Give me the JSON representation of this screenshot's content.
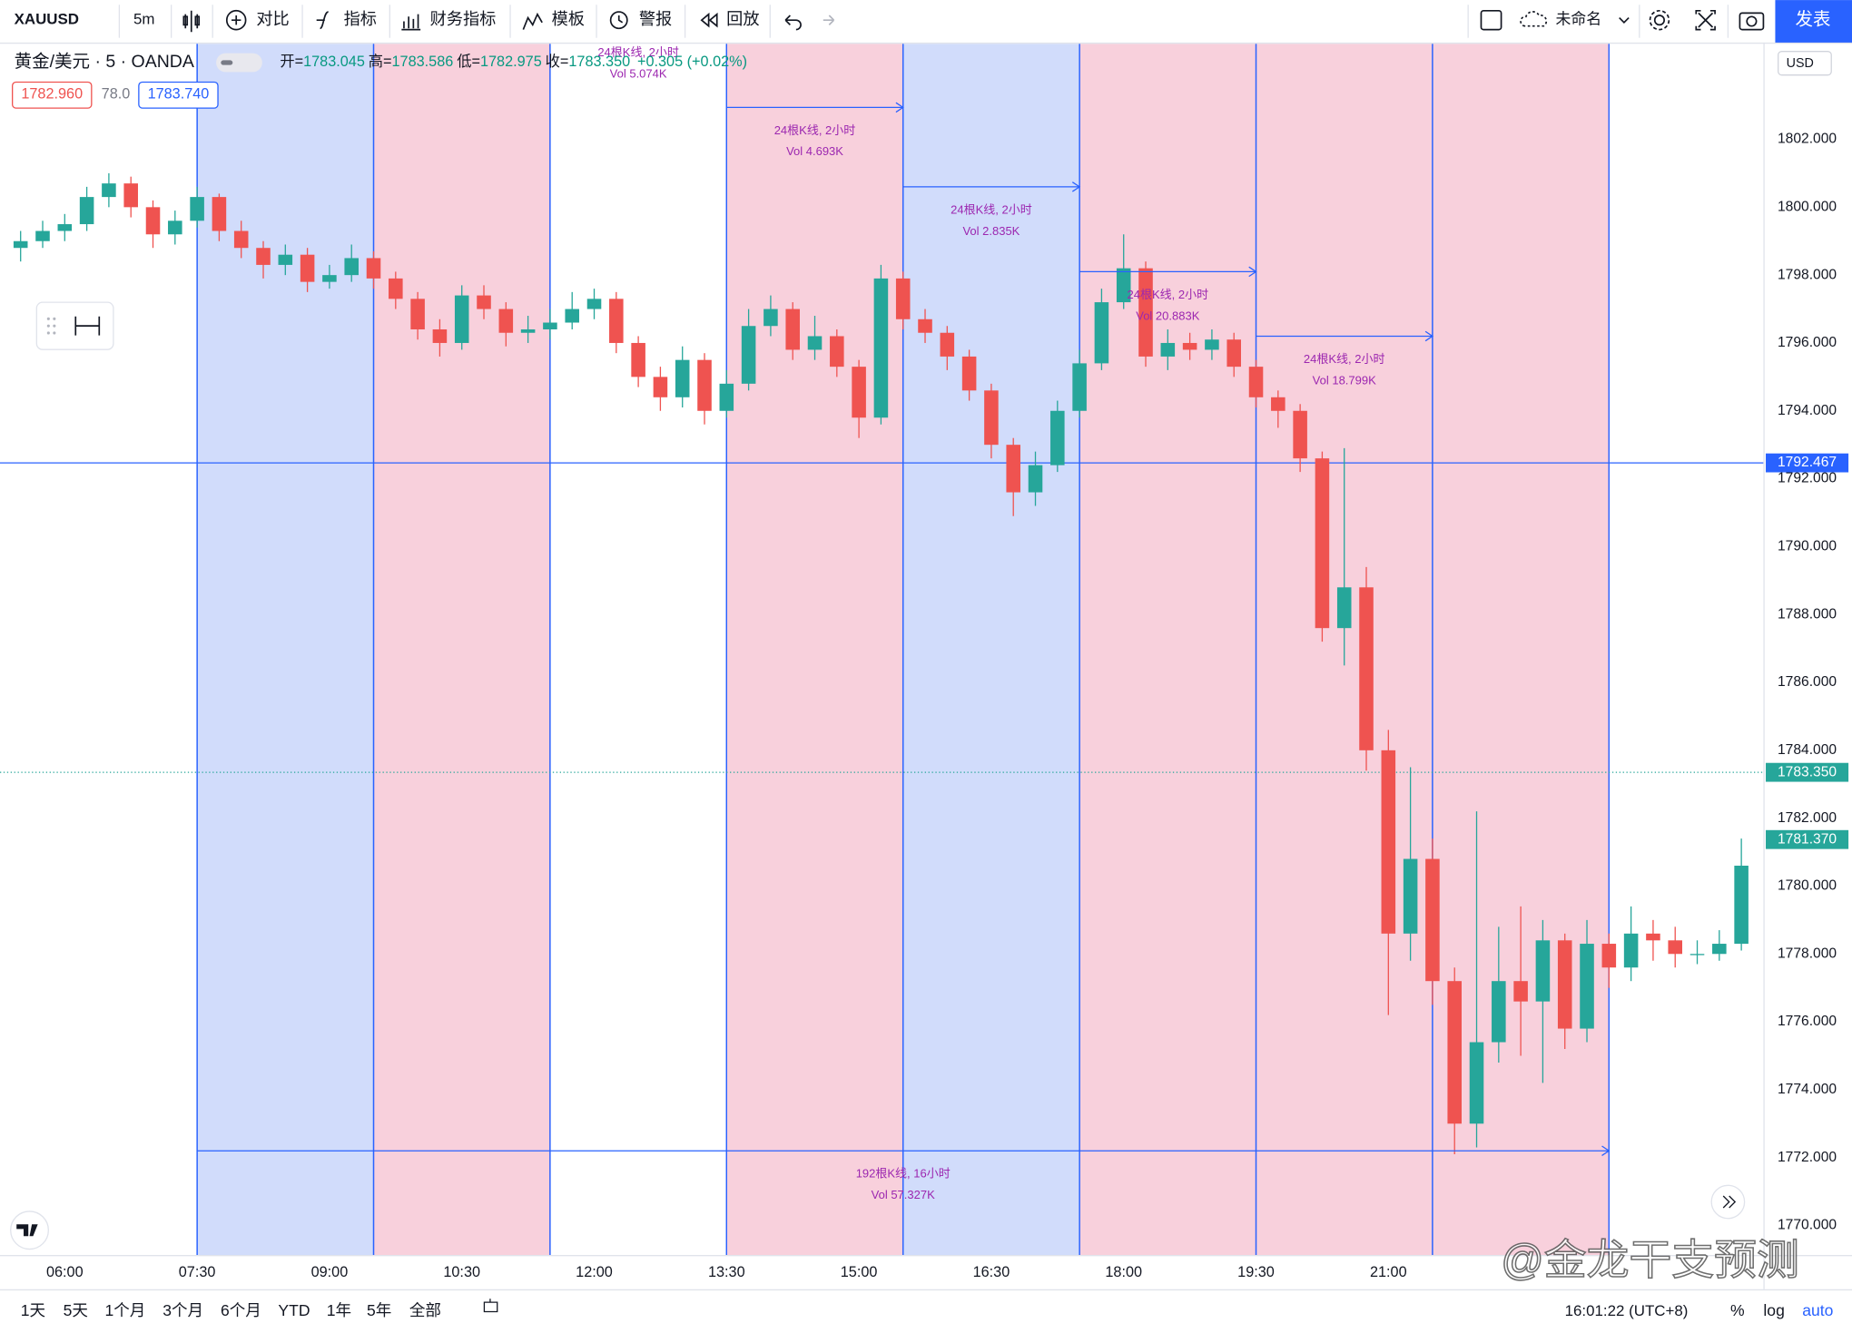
{
  "toolbar": {
    "symbol": "XAUUSD",
    "interval": "5m",
    "items": [
      "对比",
      "指标",
      "财务指标",
      "模板",
      "警报",
      "回放"
    ],
    "layout_name": "未命名",
    "publish": "发表"
  },
  "legend": {
    "title": "黄金/美元 · 5 · OANDA",
    "ohlc": [
      {
        "label": "开=",
        "value": "1783.045"
      },
      {
        "label": "高=",
        "value": "1783.586"
      },
      {
        "label": "低=",
        "value": "1782.975"
      },
      {
        "label": "收=",
        "value": "1783.350"
      }
    ],
    "change": "+0.305 (+0.02%)",
    "bid": "1782.960",
    "spread": "78.0",
    "ask": "1783.740"
  },
  "currency": "USD",
  "chart_data": {
    "type": "candlestick",
    "x": [
      330,
      345,
      360,
      375,
      390,
      405,
      420,
      435,
      450,
      465,
      480,
      495,
      510,
      525,
      540,
      555,
      570,
      585,
      600,
      615,
      630,
      645,
      660,
      675,
      690,
      705,
      720,
      735,
      750,
      765,
      780,
      795,
      810,
      825,
      840,
      855,
      870,
      885,
      900,
      915,
      930,
      945,
      960,
      975,
      990,
      1005,
      1020,
      1035,
      1050,
      1065,
      1080,
      1095,
      1110,
      1125,
      1140,
      1155,
      1170,
      1185,
      1200,
      1215,
      1230,
      1245,
      1260,
      1275,
      1290,
      1305,
      1320,
      1335,
      1350,
      1365,
      1380,
      1395,
      1410,
      1425,
      1440,
      1455,
      1470,
      1485,
      1500
    ],
    "open": [
      1798.8,
      1799.0,
      1799.3,
      1799.5,
      1800.3,
      1800.7,
      1800.0,
      1799.2,
      1799.6,
      1800.3,
      1799.3,
      1798.8,
      1798.3,
      1798.6,
      1797.8,
      1798.0,
      1798.5,
      1797.9,
      1797.3,
      1796.4,
      1796.0,
      1797.4,
      1797.0,
      1796.3,
      1796.4,
      1796.6,
      1797.0,
      1797.3,
      1796.0,
      1795.0,
      1794.4,
      1795.5,
      1794.0,
      1794.8,
      1796.5,
      1797.0,
      1795.8,
      1796.2,
      1795.3,
      1793.8,
      1797.9,
      1796.7,
      1796.3,
      1795.6,
      1794.6,
      1793.0,
      1791.6,
      1792.4,
      1794.0,
      1795.4,
      1797.2,
      1798.2,
      1795.6,
      1796.0,
      1795.8,
      1796.1,
      1795.3,
      1794.4,
      1794.0,
      1792.6,
      1787.6,
      1788.8,
      1784.0,
      1778.6,
      1780.8,
      1777.2,
      1773.0,
      1775.4,
      1777.2,
      1776.6,
      1778.4,
      1775.8,
      1778.3,
      1777.6,
      1778.6,
      1778.4,
      1778.0,
      1778.0,
      1778.3
    ],
    "high": [
      1799.3,
      1799.6,
      1799.8,
      1800.6,
      1801.0,
      1800.9,
      1800.2,
      1799.9,
      1800.6,
      1800.4,
      1799.6,
      1799.0,
      1798.9,
      1798.8,
      1798.3,
      1798.9,
      1798.7,
      1798.1,
      1797.5,
      1796.7,
      1797.7,
      1797.7,
      1797.2,
      1796.8,
      1797.0,
      1797.5,
      1797.6,
      1797.5,
      1796.2,
      1795.3,
      1795.9,
      1795.7,
      1795.2,
      1797.0,
      1797.4,
      1797.2,
      1796.8,
      1796.4,
      1795.5,
      1798.3,
      1798.1,
      1797.0,
      1796.5,
      1795.8,
      1794.8,
      1793.2,
      1792.8,
      1794.3,
      1795.8,
      1797.6,
      1799.2,
      1798.4,
      1796.4,
      1796.3,
      1796.4,
      1796.3,
      1795.5,
      1794.6,
      1794.2,
      1792.8,
      1792.9,
      1789.4,
      1784.6,
      1783.5,
      1781.4,
      1777.6,
      1782.2,
      1778.8,
      1779.4,
      1779.0,
      1778.6,
      1779.0,
      1778.6,
      1779.4,
      1779.0,
      1778.8,
      1778.4,
      1778.7,
      1781.4
    ],
    "low": [
      1798.4,
      1798.8,
      1799.0,
      1799.3,
      1800.0,
      1799.7,
      1798.8,
      1798.9,
      1799.4,
      1799.0,
      1798.5,
      1797.9,
      1798.0,
      1797.5,
      1797.6,
      1797.8,
      1797.6,
      1797.0,
      1796.1,
      1795.6,
      1795.8,
      1796.7,
      1795.9,
      1796.0,
      1796.1,
      1796.4,
      1796.7,
      1795.7,
      1794.7,
      1794.0,
      1794.1,
      1793.6,
      1793.8,
      1794.6,
      1796.2,
      1795.5,
      1795.5,
      1795.0,
      1793.2,
      1793.6,
      1796.4,
      1796.0,
      1795.2,
      1794.3,
      1792.6,
      1790.9,
      1791.2,
      1792.2,
      1793.8,
      1795.2,
      1797.0,
      1795.3,
      1795.2,
      1795.5,
      1795.5,
      1795.0,
      1794.1,
      1793.5,
      1792.2,
      1787.2,
      1786.5,
      1783.4,
      1776.2,
      1777.8,
      1776.5,
      1772.1,
      1772.3,
      1774.8,
      1775.0,
      1774.2,
      1775.2,
      1775.4,
      1777.0,
      1777.2,
      1777.8,
      1777.6,
      1777.7,
      1777.8,
      1778.1
    ],
    "close": [
      1799.0,
      1799.3,
      1799.5,
      1800.3,
      1800.7,
      1800.0,
      1799.2,
      1799.6,
      1800.3,
      1799.3,
      1798.8,
      1798.3,
      1798.6,
      1797.8,
      1798.0,
      1798.5,
      1797.9,
      1797.3,
      1796.4,
      1796.0,
      1797.4,
      1797.0,
      1796.3,
      1796.4,
      1796.6,
      1797.0,
      1797.3,
      1796.0,
      1795.0,
      1794.4,
      1795.5,
      1794.0,
      1794.8,
      1796.5,
      1797.0,
      1795.8,
      1796.2,
      1795.3,
      1793.8,
      1797.9,
      1796.7,
      1796.3,
      1795.6,
      1794.6,
      1793.0,
      1791.6,
      1792.4,
      1794.0,
      1795.4,
      1797.2,
      1798.2,
      1795.6,
      1796.0,
      1795.8,
      1796.1,
      1795.3,
      1794.4,
      1794.0,
      1792.6,
      1787.6,
      1788.8,
      1784.0,
      1778.6,
      1780.8,
      1777.2,
      1773.0,
      1775.4,
      1777.2,
      1776.6,
      1778.4,
      1775.8,
      1778.3,
      1777.6,
      1778.6,
      1778.4,
      1778.0,
      1778.0,
      1778.3,
      1780.6
    ],
    "up_color": "#26a69a",
    "down_color": "#ef5350",
    "xlim": [
      320,
      1515
    ],
    "xticks": [
      {
        "value": 360,
        "label": "06:00"
      },
      {
        "value": 450,
        "label": "07:30"
      },
      {
        "value": 540,
        "label": "09:00"
      },
      {
        "value": 630,
        "label": "10:30"
      },
      {
        "value": 720,
        "label": "12:00"
      },
      {
        "value": 810,
        "label": "13:30"
      },
      {
        "value": 900,
        "label": "15:00"
      },
      {
        "value": 990,
        "label": "16:30"
      },
      {
        "value": 1080,
        "label": "18:00"
      },
      {
        "value": 1170,
        "label": "19:30"
      },
      {
        "value": 1260,
        "label": "21:00"
      }
    ],
    "ylim": [
      1769.13,
      1804.85
    ],
    "yticks": [
      {
        "value": 1770,
        "label": "1770.000"
      },
      {
        "value": 1772,
        "label": "1772.000"
      },
      {
        "value": 1774,
        "label": "1774.000"
      },
      {
        "value": 1776,
        "label": "1776.000"
      },
      {
        "value": 1778,
        "label": "1778.000"
      },
      {
        "value": 1780,
        "label": "1780.000"
      },
      {
        "value": 1782,
        "label": "1782.000"
      },
      {
        "value": 1784,
        "label": "1784.000"
      },
      {
        "value": 1786,
        "label": "1786.000"
      },
      {
        "value": 1788,
        "label": "1788.000"
      },
      {
        "value": 1790,
        "label": "1790.000"
      },
      {
        "value": 1792,
        "label": "1792.000"
      },
      {
        "value": 1794,
        "label": "1794.000"
      },
      {
        "value": 1796,
        "label": "1796.000"
      },
      {
        "value": 1798,
        "label": "1798.000"
      },
      {
        "value": 1800,
        "label": "1800.000"
      },
      {
        "value": 1802,
        "label": "1802.000"
      }
    ],
    "grid": false,
    "ranges": [
      {
        "start": 450,
        "end": 570,
        "fill": "#d1dcfb"
      },
      {
        "start": 570,
        "end": 690,
        "fill": "#f8d0dc"
      },
      {
        "start": 690,
        "end": 810,
        "fill": "#ffffff",
        "price": 1805.6,
        "bars": "24根K线, 2小时",
        "volume": "Vol 5.074K"
      },
      {
        "start": 810,
        "end": 930,
        "fill": "#f8d0dc",
        "price": 1802.94,
        "bars": "24根K线, 2小时",
        "volume": "Vol 4.693K"
      },
      {
        "start": 930,
        "end": 1050,
        "fill": "#d1dcfb",
        "price": 1800.6,
        "bars": "24根K线, 2小时",
        "volume": "Vol 2.835K"
      },
      {
        "start": 1050,
        "end": 1170,
        "fill": "#f8d0dc",
        "price": 1798.1,
        "bars": "24根K线, 2小时",
        "volume": "Vol 20.883K"
      },
      {
        "start": 1170,
        "end": 1290,
        "fill": "#f8d0dc",
        "price": 1796.2,
        "bars": "24根K线, 2小时",
        "volume": "Vol 18.799K"
      },
      {
        "start": 1290,
        "end": 1410,
        "fill": "#f8d0dc"
      },
      {
        "start": 450,
        "end": 1410,
        "fill": "none",
        "price": 1772.2,
        "bars": "192根K线, 16小时",
        "volume": "Vol 57.327K"
      }
    ],
    "price_lines": [
      {
        "value": 1792.467,
        "label": "1792.467",
        "color": "#2962ff",
        "line": "solid"
      },
      {
        "value": 1783.35,
        "label": "1783.350",
        "color": "#26a69a",
        "line": "dotted"
      },
      {
        "value": 1781.37,
        "label": "1781.370",
        "color": "#26a69a",
        "line": "none"
      }
    ]
  },
  "bottom_bar": {
    "ranges": [
      "1天",
      "5天",
      "1个月",
      "3个月",
      "6个月",
      "YTD",
      "1年",
      "5年",
      "全部"
    ],
    "clock": "16:01:22 (UTC+8)",
    "options": [
      "%",
      "log",
      "auto"
    ]
  },
  "watermark": "@金龙干支预测"
}
